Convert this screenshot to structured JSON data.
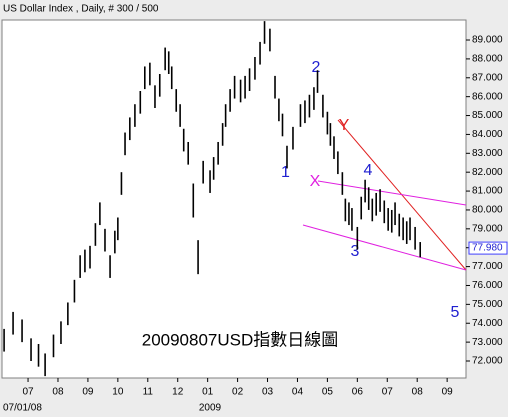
{
  "chart_data": {
    "type": "ohlc",
    "title": "US Dollar Index , Daily, # 300 / 500",
    "subtitle": "20090807USD指數日線圖",
    "x_start_label": "07/01/08",
    "year_label": "2009",
    "x": [
      -0.8,
      -0.5,
      -0.2,
      0.1,
      0.35,
      0.57,
      0.85,
      1.1,
      1.33,
      1.55,
      1.74,
      1.9,
      2.07,
      2.25,
      2.4,
      2.57,
      2.74,
      2.9,
      3.0,
      3.12,
      3.24,
      3.4,
      3.57,
      3.75,
      3.9,
      4.07,
      4.24,
      4.4,
      4.58,
      4.7,
      4.8,
      4.95,
      5.08,
      5.2,
      5.35,
      5.52,
      5.68,
      5.85,
      6.08,
      6.2,
      6.35,
      6.5,
      6.6,
      6.75,
      6.9,
      7.1,
      7.25,
      7.4,
      7.58,
      7.75,
      7.9,
      8.08,
      8.25,
      8.38,
      8.5,
      8.65,
      8.85,
      9.1,
      9.25,
      9.4,
      9.55,
      9.67,
      9.85,
      10.0,
      10.1,
      10.22,
      10.35,
      10.5,
      10.6,
      10.72,
      10.82,
      11.0,
      11.13,
      11.26,
      11.38,
      11.5,
      11.63,
      11.76,
      11.9,
      12.03,
      12.15,
      12.26,
      12.4,
      12.53,
      12.65,
      12.76,
      12.93,
      13.1
    ],
    "high": [
      73.7,
      74.6,
      74.2,
      73.2,
      72.9,
      72.4,
      73.4,
      74.1,
      75.1,
      76.3,
      77.6,
      77.9,
      78.1,
      79.3,
      80.4,
      79.0,
      77.6,
      78.9,
      79.6,
      82.0,
      84.1,
      84.9,
      85.6,
      86.3,
      87.6,
      87.8,
      86.6,
      87.2,
      88.6,
      88.4,
      87.6,
      86.4,
      85.6,
      84.3,
      83.6,
      81.4,
      78.4,
      82.6,
      82.1,
      82.8,
      83.6,
      84.6,
      85.6,
      86.4,
      87.1,
      86.9,
      87.1,
      87.5,
      88.1,
      88.9,
      90.0,
      89.6,
      87.1,
      85.9,
      85.1,
      83.4,
      84.4,
      85.6,
      85.8,
      86.1,
      86.5,
      87.4,
      86.1,
      85.2,
      84.6,
      83.9,
      83.1,
      82.0,
      80.6,
      80.4,
      80.1,
      79.1,
      80.7,
      81.6,
      81.2,
      80.6,
      80.9,
      81.1,
      80.5,
      80.1,
      80.0,
      80.4,
      79.8,
      79.6,
      79.4,
      79.6,
      79.1,
      78.3
    ],
    "low": [
      72.5,
      73.4,
      73.0,
      72.0,
      71.7,
      71.2,
      72.2,
      72.9,
      73.9,
      75.1,
      76.4,
      76.7,
      76.9,
      78.1,
      79.2,
      77.8,
      76.4,
      77.7,
      78.4,
      80.8,
      82.9,
      83.7,
      84.4,
      85.1,
      86.4,
      86.6,
      85.4,
      86.0,
      87.4,
      87.2,
      86.4,
      85.2,
      84.4,
      83.1,
      82.4,
      79.6,
      76.6,
      81.4,
      80.9,
      81.6,
      82.4,
      83.4,
      84.4,
      85.2,
      85.9,
      85.7,
      85.9,
      86.3,
      86.9,
      87.7,
      88.8,
      88.4,
      85.9,
      84.7,
      83.9,
      82.2,
      83.2,
      84.4,
      84.6,
      84.9,
      85.3,
      86.2,
      84.9,
      84.0,
      83.4,
      82.7,
      81.9,
      80.8,
      79.4,
      79.2,
      78.9,
      77.9,
      79.5,
      80.4,
      80.0,
      79.4,
      79.7,
      79.9,
      79.3,
      78.9,
      78.8,
      79.2,
      78.6,
      78.4,
      78.2,
      78.4,
      77.9,
      77.5
    ],
    "color": "#000000",
    "ylim": [
      71.1,
      90.06
    ],
    "yticks": [
      {
        "value": 72,
        "label": "72.000"
      },
      {
        "value": 73,
        "label": "73.000"
      },
      {
        "value": 74,
        "label": "74.000"
      },
      {
        "value": 75,
        "label": "75.000"
      },
      {
        "value": 76,
        "label": "76.000"
      },
      {
        "value": 77,
        "label": "77.000"
      },
      {
        "value": 78,
        "label": "78.000"
      },
      {
        "value": 79,
        "label": "79.000"
      },
      {
        "value": 80,
        "label": "80.000"
      },
      {
        "value": 81,
        "label": "81.000"
      },
      {
        "value": 82,
        "label": "82.000"
      },
      {
        "value": 83,
        "label": "83.000"
      },
      {
        "value": 84,
        "label": "84.000"
      },
      {
        "value": 85,
        "label": "85.000"
      },
      {
        "value": 86,
        "label": "86.000"
      },
      {
        "value": 87,
        "label": "87.000"
      },
      {
        "value": 88,
        "label": "88.000"
      },
      {
        "value": 89,
        "label": "89.000"
      }
    ],
    "last_value": {
      "value": 77.98,
      "label": "77.980"
    },
    "xlim": [
      -0.87,
      14.63
    ],
    "xticks": [
      {
        "value": 0,
        "label": "07"
      },
      {
        "value": 1,
        "label": "08"
      },
      {
        "value": 2,
        "label": "09"
      },
      {
        "value": 3,
        "label": "10"
      },
      {
        "value": 4,
        "label": "11"
      },
      {
        "value": 5,
        "label": "12"
      },
      {
        "value": 6,
        "label": "01"
      },
      {
        "value": 7,
        "label": "02"
      },
      {
        "value": 8,
        "label": "03"
      },
      {
        "value": 9,
        "label": "04"
      },
      {
        "value": 10,
        "label": "05"
      },
      {
        "value": 11,
        "label": "06"
      },
      {
        "value": 12,
        "label": "07"
      },
      {
        "value": 13,
        "label": "08"
      },
      {
        "value": 14,
        "label": "09"
      }
    ],
    "annotations": [
      "1",
      "2",
      "3",
      "4",
      "5",
      "X",
      "Y"
    ]
  }
}
